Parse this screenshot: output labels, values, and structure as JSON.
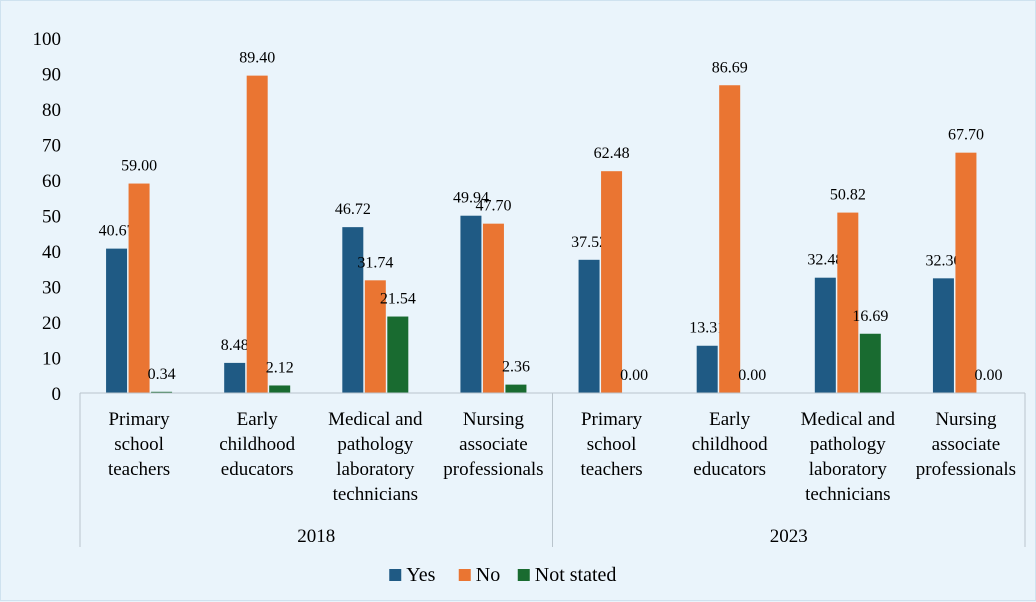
{
  "chart_data": {
    "type": "bar",
    "ylim": [
      0,
      100
    ],
    "yticks": [
      "0",
      "10",
      "20",
      "30",
      "40",
      "50",
      "60",
      "70",
      "80",
      "90",
      "100"
    ],
    "groups": [
      {
        "label": "2018",
        "categories": [
          [
            "Primary",
            "school",
            "teachers"
          ],
          [
            "Early",
            "childhood",
            "educators"
          ],
          [
            "Medical and",
            "pathology",
            "laboratory",
            "technicians"
          ],
          [
            "Nursing",
            "associate",
            "professionals"
          ]
        ]
      },
      {
        "label": "2023",
        "categories": [
          [
            "Primary",
            "school",
            "teachers"
          ],
          [
            "Early",
            "childhood",
            "educators"
          ],
          [
            "Medical and",
            "pathology",
            "laboratory",
            "technicians"
          ],
          [
            "Nursing",
            "associate",
            "professionals"
          ]
        ]
      }
    ],
    "series": [
      {
        "name": "Yes",
        "color": "#1f5a84",
        "values": [
          40.67,
          8.48,
          46.72,
          49.94,
          37.52,
          13.31,
          32.48,
          32.3
        ],
        "labels": [
          "40.67",
          "8.48",
          "46.72",
          "49.94",
          "37.52",
          "13.31",
          "32.48",
          "32.30"
        ]
      },
      {
        "name": "No",
        "color": "#ea7532",
        "values": [
          59.0,
          89.4,
          31.74,
          47.7,
          62.48,
          86.69,
          50.82,
          67.7
        ],
        "labels": [
          "59.00",
          "89.40",
          "31.74",
          "47.70",
          "62.48",
          "86.69",
          "50.82",
          "67.70"
        ]
      },
      {
        "name": "Not stated",
        "color": "#196b30",
        "values": [
          0.34,
          2.12,
          21.54,
          2.36,
          0.0,
          0.0,
          16.69,
          0.0
        ],
        "labels": [
          "0.34",
          "2.12",
          "21.54",
          "2.36",
          "0.00",
          "0.00",
          "16.69",
          "0.00"
        ]
      }
    ],
    "legend_position": "bottom",
    "grid": false
  }
}
